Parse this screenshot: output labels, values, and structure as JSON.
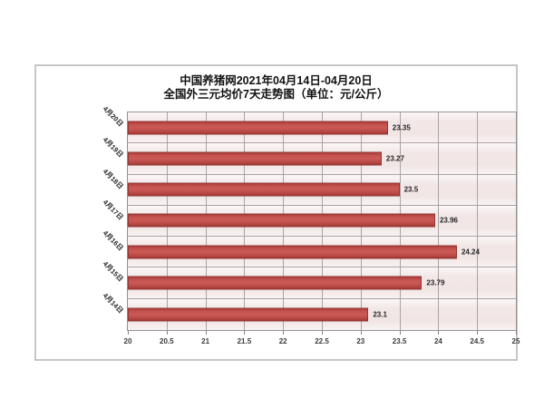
{
  "chart": {
    "title_line1": "中国养猪网2021年04月14日-04月20日",
    "title_line2": "全国外三元均价7天走势图（单位：元/公斤）"
  },
  "chart_data": {
    "type": "bar",
    "orientation": "horizontal",
    "title": "中国养猪网2021年04月14日-04月20日",
    "subtitle": "全国外三元均价7天走势图（单位：元/公斤）",
    "unit": "元/公斤",
    "categories": [
      "4月20日",
      "4月19日",
      "4月18日",
      "4月17日",
      "4月16日",
      "4月15日",
      "4月14日"
    ],
    "values": [
      23.35,
      23.27,
      23.5,
      23.96,
      24.24,
      23.79,
      23.1
    ],
    "value_labels": [
      "23.35",
      "23.27",
      "23.5",
      "23.96",
      "24.24",
      "23.79",
      "23.1"
    ],
    "xlim": [
      20,
      25
    ],
    "x_ticks": [
      20,
      20.5,
      21,
      21.5,
      22,
      22.5,
      23,
      23.5,
      24,
      24.5,
      25
    ],
    "x_tick_labels": [
      "20",
      "20.5",
      "21",
      "21.5",
      "22",
      "22.5",
      "23",
      "23.5",
      "24",
      "24.5",
      "25"
    ],
    "grid": true,
    "legend": false,
    "colors": {
      "bar": "#c0504d",
      "bar_border": "#943634",
      "plot_background": "#f4ebeb",
      "gridline": "#aba2a2",
      "frame_border": "#c6c6c6",
      "text": "#262626"
    }
  }
}
